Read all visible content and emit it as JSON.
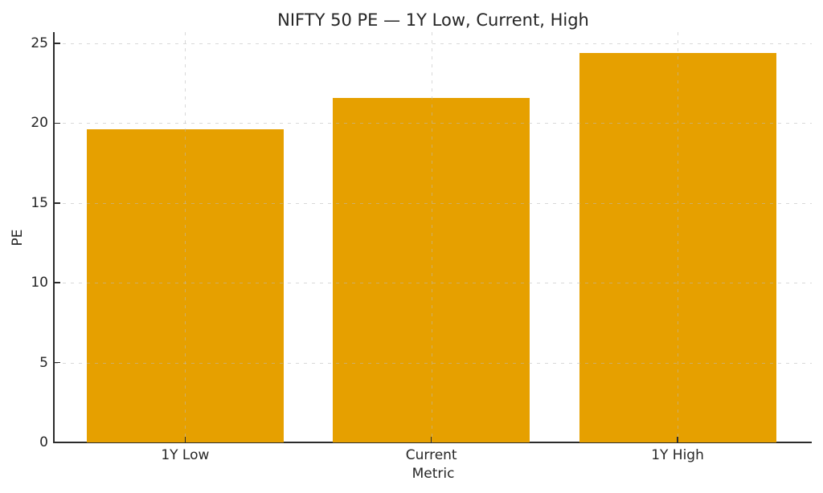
{
  "chart_data": {
    "type": "bar",
    "title": "NIFTY 50 PE — 1Y Low, Current, High",
    "categories": [
      "1Y Low",
      "Current",
      "1Y High"
    ],
    "values": [
      19.6,
      21.6,
      24.4
    ],
    "xlabel": "Metric",
    "ylabel": "PE",
    "ylim": [
      0,
      25.7
    ],
    "xlim": [
      -0.53,
      2.545
    ],
    "yticks": [
      0,
      5,
      10,
      15,
      20,
      25
    ],
    "bar_width_units": 0.8,
    "bar_color": "#e6a000",
    "grid": true,
    "grid_line_style": "dashed",
    "grid_drawn_over_bars": true,
    "legend_position": "none",
    "text_color": "#262626",
    "axis_color": "#2b2b2b",
    "background": "#ffffff"
  }
}
